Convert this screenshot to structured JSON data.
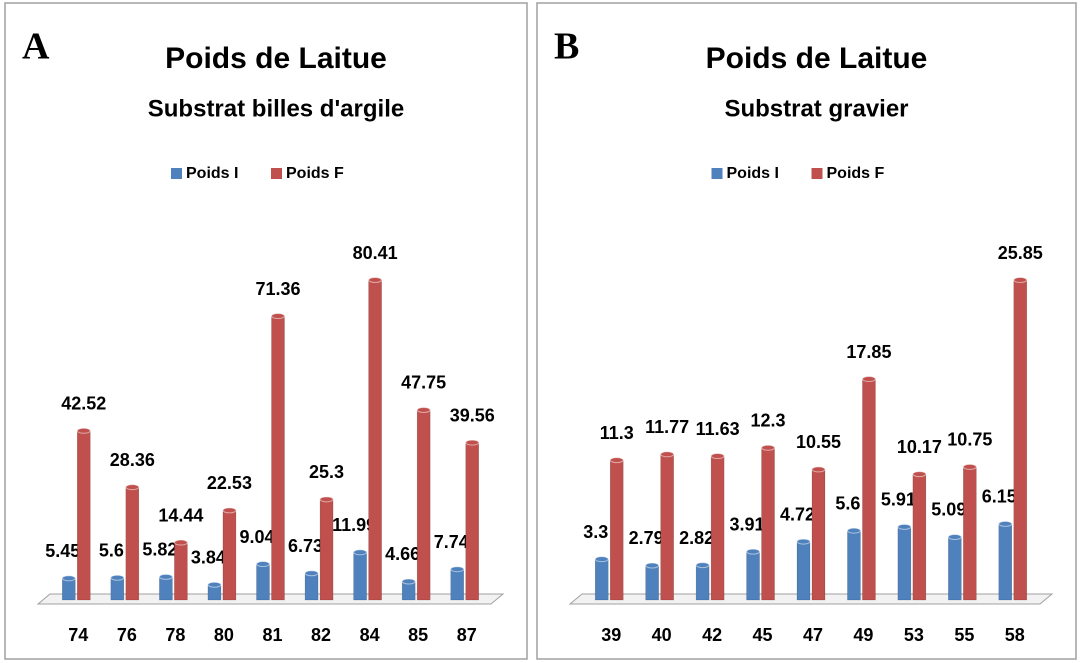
{
  "chart_data": [
    {
      "type": "bar",
      "label": "A",
      "title": "Poids de Laitue",
      "subtitle": "Substrat billes d'argile",
      "categories": [
        "74",
        "76",
        "78",
        "80",
        "81",
        "82",
        "84",
        "85",
        "87"
      ],
      "series": [
        {
          "name": "Poids I",
          "color": "#4f81bd",
          "values": [
            5.45,
            5.6,
            5.82,
            3.84,
            9.04,
            6.73,
            11.99,
            4.66,
            7.74
          ]
        },
        {
          "name": "Poids F",
          "color": "#c0504d",
          "values": [
            42.52,
            28.36,
            14.44,
            22.53,
            71.36,
            25.3,
            80.41,
            47.75,
            39.56
          ]
        }
      ]
    },
    {
      "type": "bar",
      "label": "B",
      "title": "Poids de Laitue",
      "subtitle": "Substrat gravier",
      "categories": [
        "39",
        "40",
        "42",
        "45",
        "47",
        "49",
        "53",
        "55",
        "58"
      ],
      "series": [
        {
          "name": "Poids I",
          "color": "#4f81bd",
          "values": [
            3.3,
            2.79,
            2.82,
            3.91,
            4.72,
            5.6,
            5.91,
            5.09,
            6.15
          ]
        },
        {
          "name": "Poids F",
          "color": "#c0504d",
          "values": [
            11.3,
            11.77,
            11.63,
            12.3,
            10.55,
            17.85,
            10.17,
            10.75,
            25.85
          ]
        }
      ]
    }
  ]
}
